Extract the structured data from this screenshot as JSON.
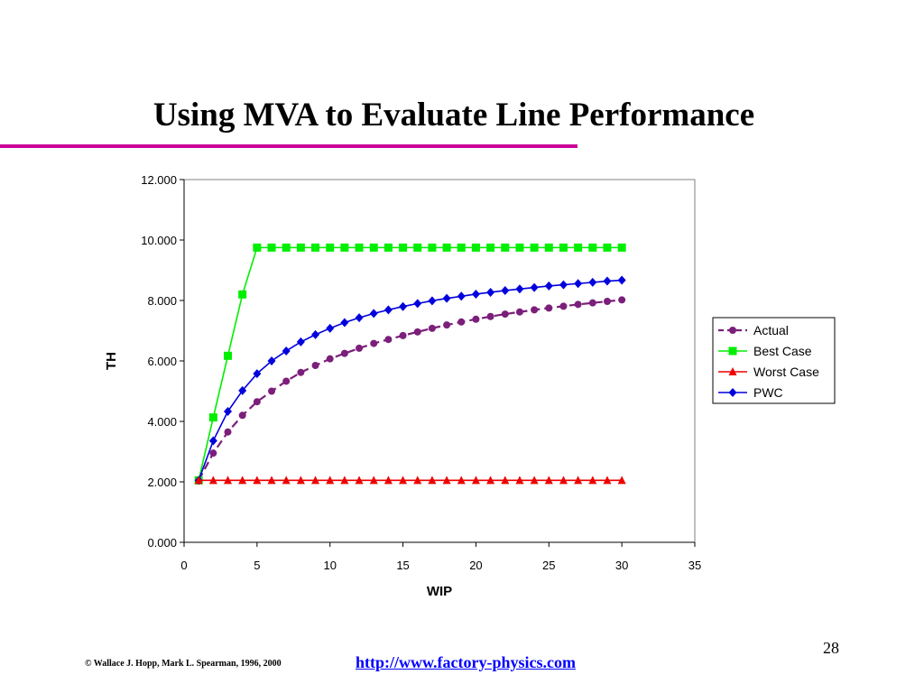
{
  "slide": {
    "title": "Using MVA to Evaluate Line Performance",
    "footer_copyright": "© Wallace J. Hopp, Mark L. Spearman, 1996, 2000",
    "footer_link": "http://www.factory-physics.com",
    "page_number": "28",
    "accent_color": "#cc0099",
    "link_color": "#0000ff"
  },
  "chart_data": {
    "type": "line",
    "title": "",
    "xlabel": "WIP",
    "ylabel": "TH",
    "xlim": [
      0,
      35
    ],
    "ylim": [
      0,
      12
    ],
    "x_ticks": [
      "0",
      "5",
      "10",
      "15",
      "20",
      "25",
      "30",
      "35"
    ],
    "y_ticks": [
      "0.000",
      "2.000",
      "4.000",
      "6.000",
      "8.000",
      "10.000",
      "12.000"
    ],
    "grid": false,
    "legend_position": "right",
    "x": [
      1,
      2,
      3,
      4,
      5,
      6,
      7,
      8,
      9,
      10,
      11,
      12,
      13,
      14,
      15,
      16,
      17,
      18,
      19,
      20,
      21,
      22,
      23,
      24,
      25,
      26,
      27,
      28,
      29,
      30
    ],
    "series": [
      {
        "name": "Actual",
        "color": "#7b1f7b",
        "marker": "circle",
        "dashed": true,
        "values": [
          2.05,
          2.95,
          3.65,
          4.2,
          4.65,
          5.0,
          5.33,
          5.62,
          5.85,
          6.07,
          6.25,
          6.42,
          6.58,
          6.71,
          6.84,
          6.96,
          7.08,
          7.19,
          7.29,
          7.38,
          7.47,
          7.55,
          7.62,
          7.69,
          7.75,
          7.81,
          7.87,
          7.92,
          7.97,
          8.02
        ]
      },
      {
        "name": "Best Case",
        "color": "#00ee00",
        "marker": "square",
        "dashed": false,
        "values": [
          2.05,
          4.13,
          6.17,
          8.2,
          9.75,
          9.75,
          9.75,
          9.75,
          9.75,
          9.75,
          9.75,
          9.75,
          9.75,
          9.75,
          9.75,
          9.75,
          9.75,
          9.75,
          9.75,
          9.75,
          9.75,
          9.75,
          9.75,
          9.75,
          9.75,
          9.75,
          9.75,
          9.75,
          9.75,
          9.75
        ]
      },
      {
        "name": "Worst Case",
        "color": "#ee0000",
        "marker": "triangle",
        "dashed": false,
        "values": [
          2.05,
          2.05,
          2.05,
          2.05,
          2.05,
          2.05,
          2.05,
          2.05,
          2.05,
          2.05,
          2.05,
          2.05,
          2.05,
          2.05,
          2.05,
          2.05,
          2.05,
          2.05,
          2.05,
          2.05,
          2.05,
          2.05,
          2.05,
          2.05,
          2.05,
          2.05,
          2.05,
          2.05,
          2.05,
          2.05
        ]
      },
      {
        "name": "PWC",
        "color": "#0000dd",
        "marker": "diamond",
        "dashed": false,
        "values": [
          2.05,
          3.36,
          4.33,
          5.02,
          5.58,
          6.0,
          6.33,
          6.63,
          6.87,
          7.08,
          7.27,
          7.43,
          7.57,
          7.69,
          7.8,
          7.9,
          7.99,
          8.07,
          8.14,
          8.21,
          8.27,
          8.33,
          8.38,
          8.43,
          8.48,
          8.52,
          8.56,
          8.6,
          8.64,
          8.67
        ]
      }
    ]
  }
}
